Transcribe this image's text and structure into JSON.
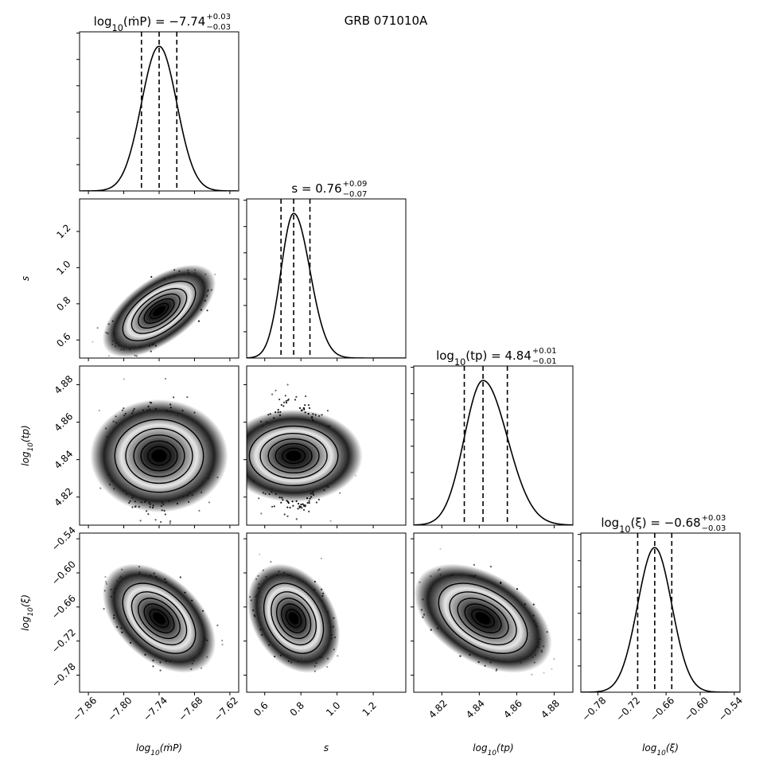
{
  "chart_data": {
    "type": "corner",
    "title": "GRB 071010A",
    "parameters": [
      {
        "name": "log_mdot",
        "axis_label": "log10(ṁP)",
        "title_prefix": "log10(ṁP) = ",
        "median": "−7.74",
        "plus": "+0.03",
        "minus": "−0.03",
        "median_value": -7.74,
        "err_plus": 0.03,
        "err_minus": 0.03,
        "range": [
          -7.875,
          -7.605
        ],
        "ticks": [
          -7.86,
          -7.8,
          -7.74,
          -7.68,
          -7.62
        ],
        "tick_labels": [
          "−7.86",
          "−7.80",
          "−7.74",
          "−7.68",
          "−7.62"
        ]
      },
      {
        "name": "s",
        "axis_label": "s",
        "title_prefix": "s = ",
        "median": "0.76",
        "plus": "+0.09",
        "minus": "−0.07",
        "median_value": 0.76,
        "err_plus": 0.09,
        "err_minus": 0.07,
        "range": [
          0.5,
          1.38
        ],
        "ticks": [
          0.6,
          0.8,
          1.0,
          1.2
        ],
        "tick_labels": [
          "0.6",
          "0.8",
          "1.0",
          "1.2"
        ]
      },
      {
        "name": "log_tp",
        "axis_label": "log10(tp)",
        "title_prefix": "log10(tp) = ",
        "median": "4.84",
        "plus": "+0.01",
        "minus": "−0.01",
        "median_value": 4.842,
        "err_plus": 0.013,
        "err_minus": 0.01,
        "range": [
          4.805,
          4.89
        ],
        "ticks": [
          4.82,
          4.84,
          4.86,
          4.88
        ],
        "tick_labels": [
          "4.82",
          "4.84",
          "4.86",
          "4.88"
        ]
      },
      {
        "name": "log_xi",
        "axis_label": "log10(ξ)",
        "title_prefix": "log10(ξ) = ",
        "median": "−0.68",
        "plus": "+0.03",
        "minus": "−0.03",
        "median_value": -0.68,
        "err_plus": 0.03,
        "err_minus": 0.03,
        "range": [
          -0.81,
          -0.53
        ],
        "ticks": [
          -0.78,
          -0.72,
          -0.66,
          -0.6,
          -0.54
        ],
        "tick_labels": [
          "−0.78",
          "−0.72",
          "−0.66",
          "−0.60",
          "−0.54"
        ]
      }
    ],
    "correlations": {
      "1-0": 0.6,
      "2-0": 0.0,
      "2-1": 0.0,
      "3-0": -0.45,
      "3-1": -0.3,
      "3-2": -0.45
    },
    "contour_levels": [
      0.12,
      0.3,
      0.5,
      0.7,
      0.87
    ]
  }
}
